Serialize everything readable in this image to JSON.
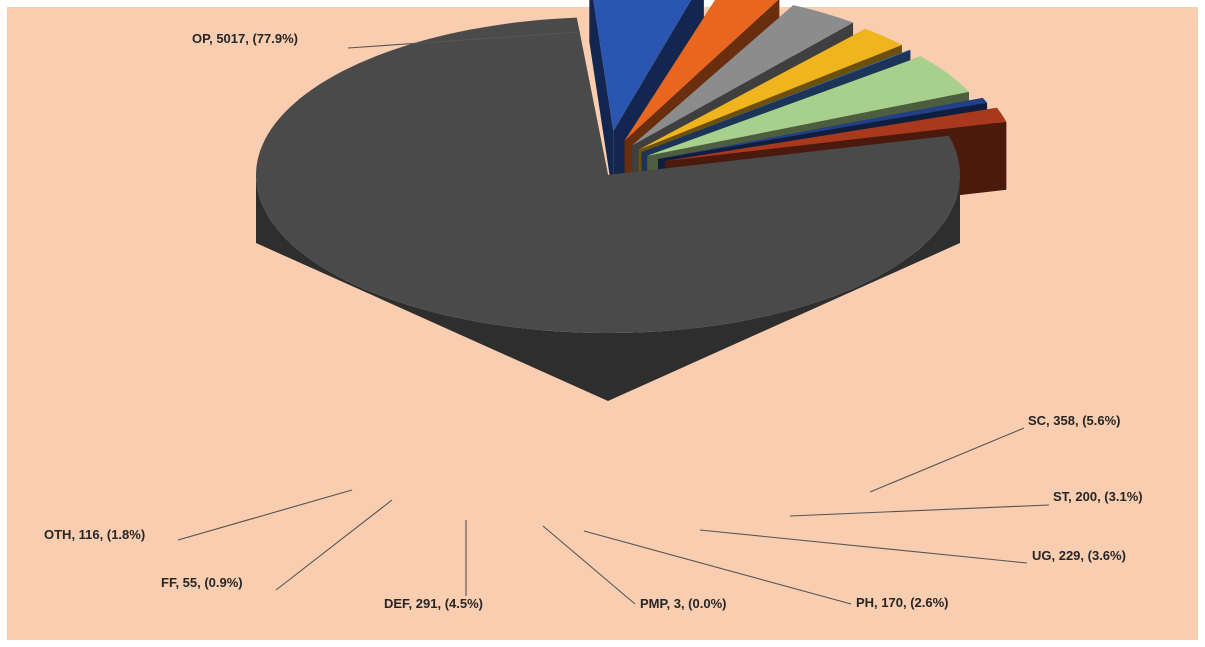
{
  "chart_data": {
    "type": "pie",
    "style": "3d-exploded",
    "legend": "none",
    "slices": [
      {
        "name": "OP",
        "value": 5017,
        "percent": "77.9%",
        "label": "OP, 5017, (77.9%)",
        "color": "#4a4a4a"
      },
      {
        "name": "SC",
        "value": 358,
        "percent": "5.6%",
        "label": "SC, 358, (5.6%)",
        "color": "#2a55b0"
      },
      {
        "name": "ST",
        "value": 200,
        "percent": "3.1%",
        "label": "ST, 200, (3.1%)",
        "color": "#e8661f"
      },
      {
        "name": "UG",
        "value": 229,
        "percent": "3.6%",
        "label": "UG, 229, (3.6%)",
        "color": "#8c8c8c"
      },
      {
        "name": "PH",
        "value": 170,
        "percent": "2.6%",
        "label": "PH, 170, (2.6%)",
        "color": "#f0b41e"
      },
      {
        "name": "PMP",
        "value": 3,
        "percent": "0.0%",
        "label": "PMP, 3, (0.0%)",
        "color": "#3d74c4"
      },
      {
        "name": "DEF",
        "value": 291,
        "percent": "4.5%",
        "label": "DEF, 291, (4.5%)",
        "color": "#a8d08d"
      },
      {
        "name": "FF",
        "value": 55,
        "percent": "0.9%",
        "label": "FF, 55, (0.9%)",
        "color": "#22408a"
      },
      {
        "name": "OTH",
        "value": 116,
        "percent": "1.8%",
        "label": "OTH, 116, (1.8%)",
        "color": "#a8391d"
      }
    ]
  }
}
